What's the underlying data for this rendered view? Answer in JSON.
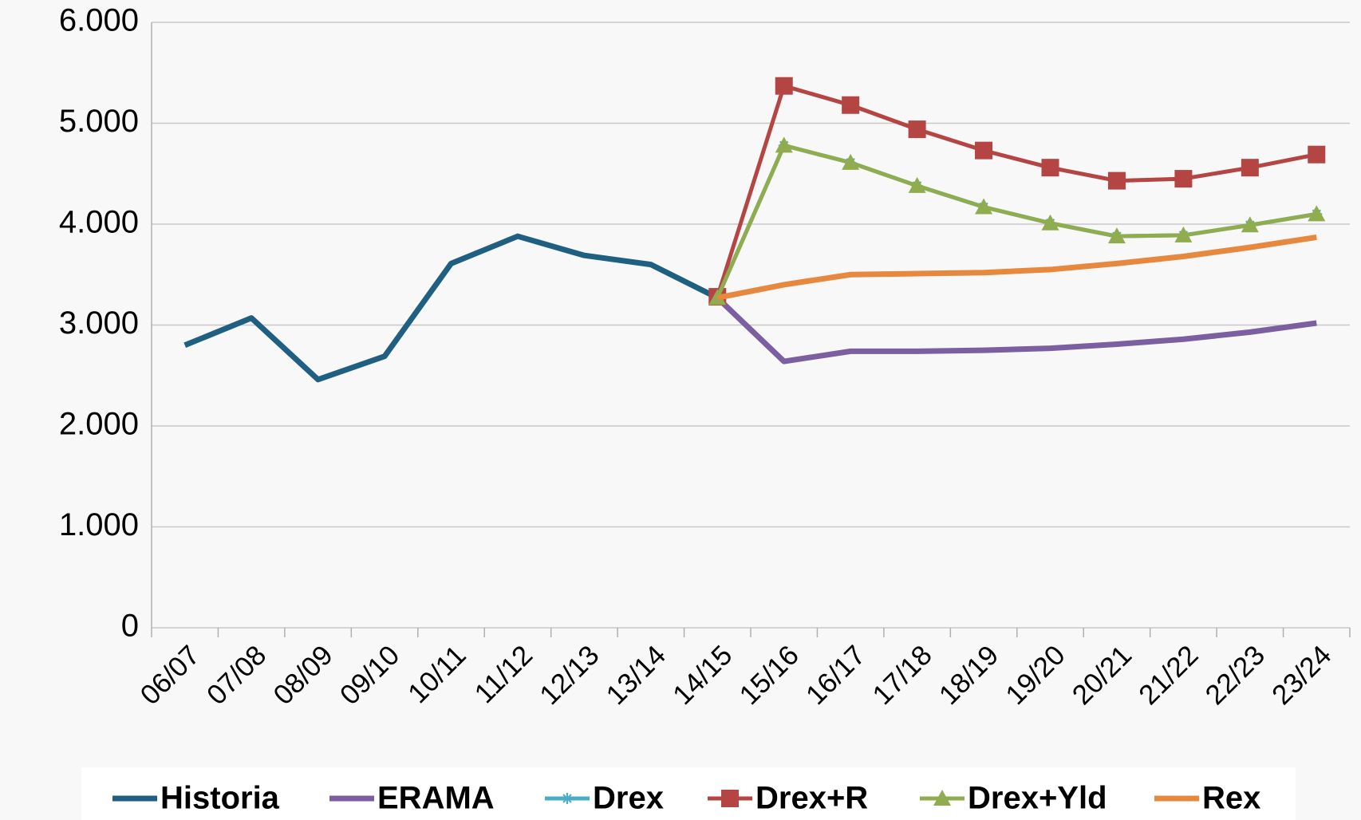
{
  "chart_data": {
    "type": "line",
    "categories": [
      "06/07",
      "07/08",
      "08/09",
      "09/10",
      "10/11",
      "11/12",
      "12/13",
      "13/14",
      "14/15",
      "15/16",
      "16/17",
      "17/18",
      "18/19",
      "19/20",
      "20/21",
      "21/22",
      "22/23",
      "23/24"
    ],
    "series": [
      {
        "name": "Historia",
        "color": "#1f5f82",
        "values": [
          2800,
          3070,
          2460,
          2690,
          3610,
          3880,
          3690,
          3600,
          3270,
          null,
          null,
          null,
          null,
          null,
          null,
          null,
          null,
          null
        ]
      },
      {
        "name": "ERAMA",
        "color": "#7b5fa0",
        "values": [
          null,
          null,
          null,
          null,
          null,
          null,
          null,
          null,
          3270,
          2640,
          2740,
          2740,
          2750,
          2770,
          2810,
          2860,
          2930,
          3020
        ]
      },
      {
        "name": "Drex",
        "color": "#4bacc6",
        "marker": "star",
        "values": [
          null,
          null,
          null,
          null,
          null,
          null,
          null,
          null,
          3270,
          4780,
          4610,
          4380,
          4170,
          4010,
          3880,
          3890,
          3990,
          4100
        ]
      },
      {
        "name": "Drex+R",
        "color": "#b54543",
        "marker": "square",
        "values": [
          null,
          null,
          null,
          null,
          null,
          null,
          null,
          null,
          3280,
          5370,
          5180,
          4940,
          4730,
          4560,
          4430,
          4450,
          4560,
          4690
        ]
      },
      {
        "name": "Drex+Yld",
        "color": "#8fad4f",
        "marker": "triangle",
        "values": [
          null,
          null,
          null,
          null,
          null,
          null,
          null,
          null,
          3270,
          4780,
          4610,
          4380,
          4170,
          4010,
          3880,
          3890,
          3990,
          4100
        ]
      },
      {
        "name": "Rex",
        "color": "#e6893f",
        "values": [
          null,
          null,
          null,
          null,
          null,
          null,
          null,
          null,
          3270,
          3400,
          3500,
          3510,
          3520,
          3550,
          3610,
          3680,
          3770,
          3870
        ]
      }
    ],
    "ylim": [
      0,
      6000
    ],
    "yticks": [
      {
        "value": 0,
        "label": "0"
      },
      {
        "value": 1000,
        "label": "1.000"
      },
      {
        "value": 2000,
        "label": "2.000"
      },
      {
        "value": 3000,
        "label": "3.000"
      },
      {
        "value": 4000,
        "label": "4.000"
      },
      {
        "value": 5000,
        "label": "5.000"
      },
      {
        "value": 6000,
        "label": "6.000"
      }
    ],
    "grid": true,
    "legend": "bottom"
  }
}
